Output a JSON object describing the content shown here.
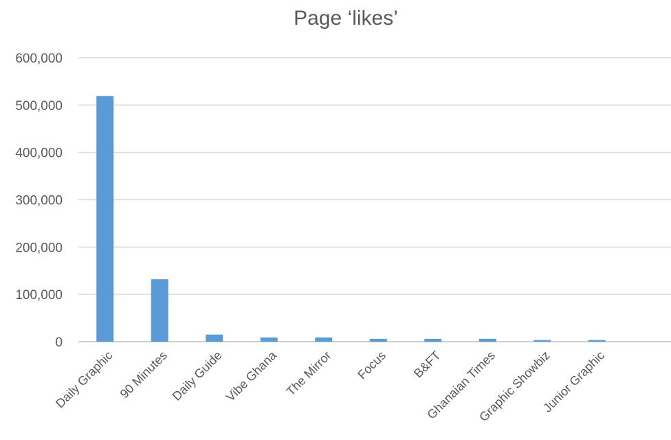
{
  "chart_data": {
    "type": "bar",
    "title": "Page ‘likes’",
    "categories": [
      "Daily Graphic",
      "90 Minutes",
      "Daily Guide",
      "Vibe Ghana",
      "The Mirror",
      "Focus",
      "B&FT",
      "Ghanaian Times",
      "Graphic Showbiz",
      "Junior Graphic"
    ],
    "values": [
      519000,
      132000,
      15000,
      9000,
      9000,
      6000,
      6000,
      6000,
      3500,
      3500
    ],
    "y_ticks": [
      "0",
      "100,000",
      "200,000",
      "300,000",
      "400,000",
      "500,000",
      "600,000"
    ],
    "ylim": [
      0,
      600000
    ],
    "grid": true,
    "legend": "none",
    "bar_color": "#5b9bd5"
  }
}
